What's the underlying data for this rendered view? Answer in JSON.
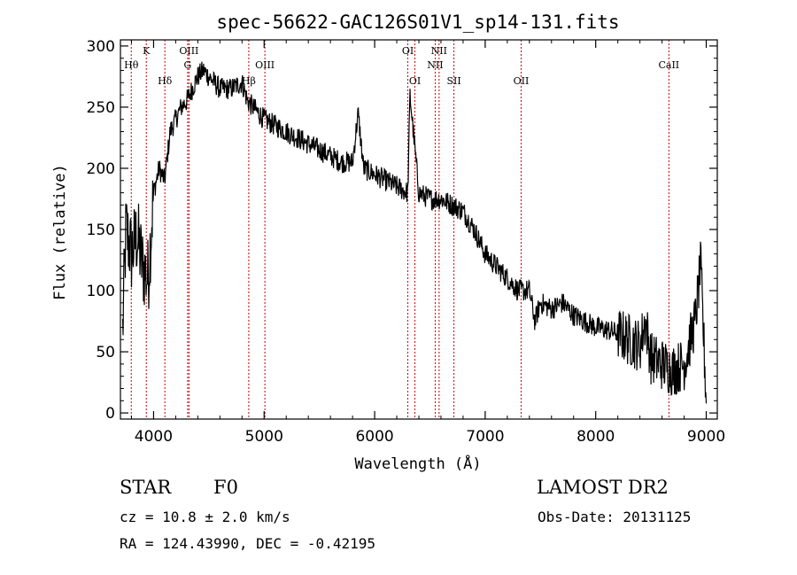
{
  "chart_data": {
    "type": "line",
    "title": "spec-56622-GAC126S01V1_sp14-131.fits",
    "xlabel": "Wavelength (Å)",
    "ylabel": "Flux (relative)",
    "xlim": [
      3700,
      9100
    ],
    "ylim": [
      -5,
      305
    ],
    "xticks": [
      4000,
      5000,
      6000,
      7000,
      8000,
      9000
    ],
    "xtick_labels": [
      "4000",
      "5000",
      "6000",
      "7000",
      "8000",
      "9000"
    ],
    "yticks": [
      0,
      50,
      100,
      150,
      200,
      250,
      300
    ],
    "ytick_labels": [
      "0",
      "50",
      "100",
      "150",
      "200",
      "250",
      "300"
    ],
    "grid": false,
    "line_color": "#000000",
    "marker_color": "#cc0000",
    "series": [
      {
        "x": [
          3700,
          3750,
          3800,
          3850,
          3900,
          3950,
          4000,
          4050,
          4100,
          4150,
          4200,
          4250,
          4300,
          4350,
          4400,
          4450,
          4500,
          4550,
          4600,
          4700,
          4800,
          4850,
          4900,
          5000,
          5100,
          5200,
          5300,
          5400,
          5500,
          5600,
          5700,
          5800,
          5850,
          5900,
          6000,
          6100,
          6200,
          6300,
          6320,
          6400,
          6500,
          6600,
          6700,
          6800,
          6900,
          7000,
          7100,
          7200,
          7300,
          7400,
          7450,
          7500,
          7600,
          7700,
          7800,
          7900,
          8000,
          8100,
          8200,
          8300,
          8400,
          8450,
          8500,
          8600,
          8700,
          8800,
          8900,
          8950,
          9000
        ],
        "y": [
          10,
          150,
          130,
          145,
          120,
          110,
          180,
          200,
          190,
          230,
          240,
          250,
          255,
          265,
          275,
          280,
          275,
          270,
          265,
          265,
          270,
          255,
          250,
          240,
          235,
          230,
          225,
          220,
          215,
          210,
          205,
          205,
          245,
          200,
          195,
          190,
          185,
          180,
          260,
          180,
          175,
          175,
          170,
          165,
          150,
          130,
          120,
          110,
          100,
          100,
          75,
          90,
          85,
          90,
          80,
          75,
          70,
          68,
          65,
          60,
          55,
          75,
          45,
          40,
          35,
          40,
          75,
          120,
          10
        ]
      }
    ],
    "spectral_lines": [
      {
        "label": "Hθ",
        "x": 3798,
        "row": 2
      },
      {
        "label": "K",
        "x": 3934,
        "row": 1
      },
      {
        "label": "Hδ",
        "x": 4102,
        "row": 3
      },
      {
        "label": "OIII",
        "x": 4320,
        "row": 1
      },
      {
        "label": "G",
        "x": 4308,
        "row": 2
      },
      {
        "label": "Hβ",
        "x": 4861,
        "row": 3
      },
      {
        "label": "OIII",
        "x": 5007,
        "row": 2
      },
      {
        "label": "OI",
        "x": 6300,
        "row": 1
      },
      {
        "label": "OI",
        "x": 6364,
        "row": 3
      },
      {
        "label": "NII",
        "x": 6548,
        "row": 2
      },
      {
        "label": "NII",
        "x": 6583,
        "row": 1
      },
      {
        "label": "SII",
        "x": 6717,
        "row": 3
      },
      {
        "label": "OII",
        "x": 7325,
        "row": 3
      },
      {
        "label": "CaII",
        "x": 8662,
        "row": 2
      }
    ]
  },
  "info": {
    "class_label": "STAR",
    "subclass": "F0",
    "survey": "LAMOST DR2",
    "cz": "cz = 10.8 ± 2.0 km/s",
    "obs_date": "Obs-Date: 20131125",
    "radec": "RA = 124.43990, DEC =  -0.42195"
  }
}
